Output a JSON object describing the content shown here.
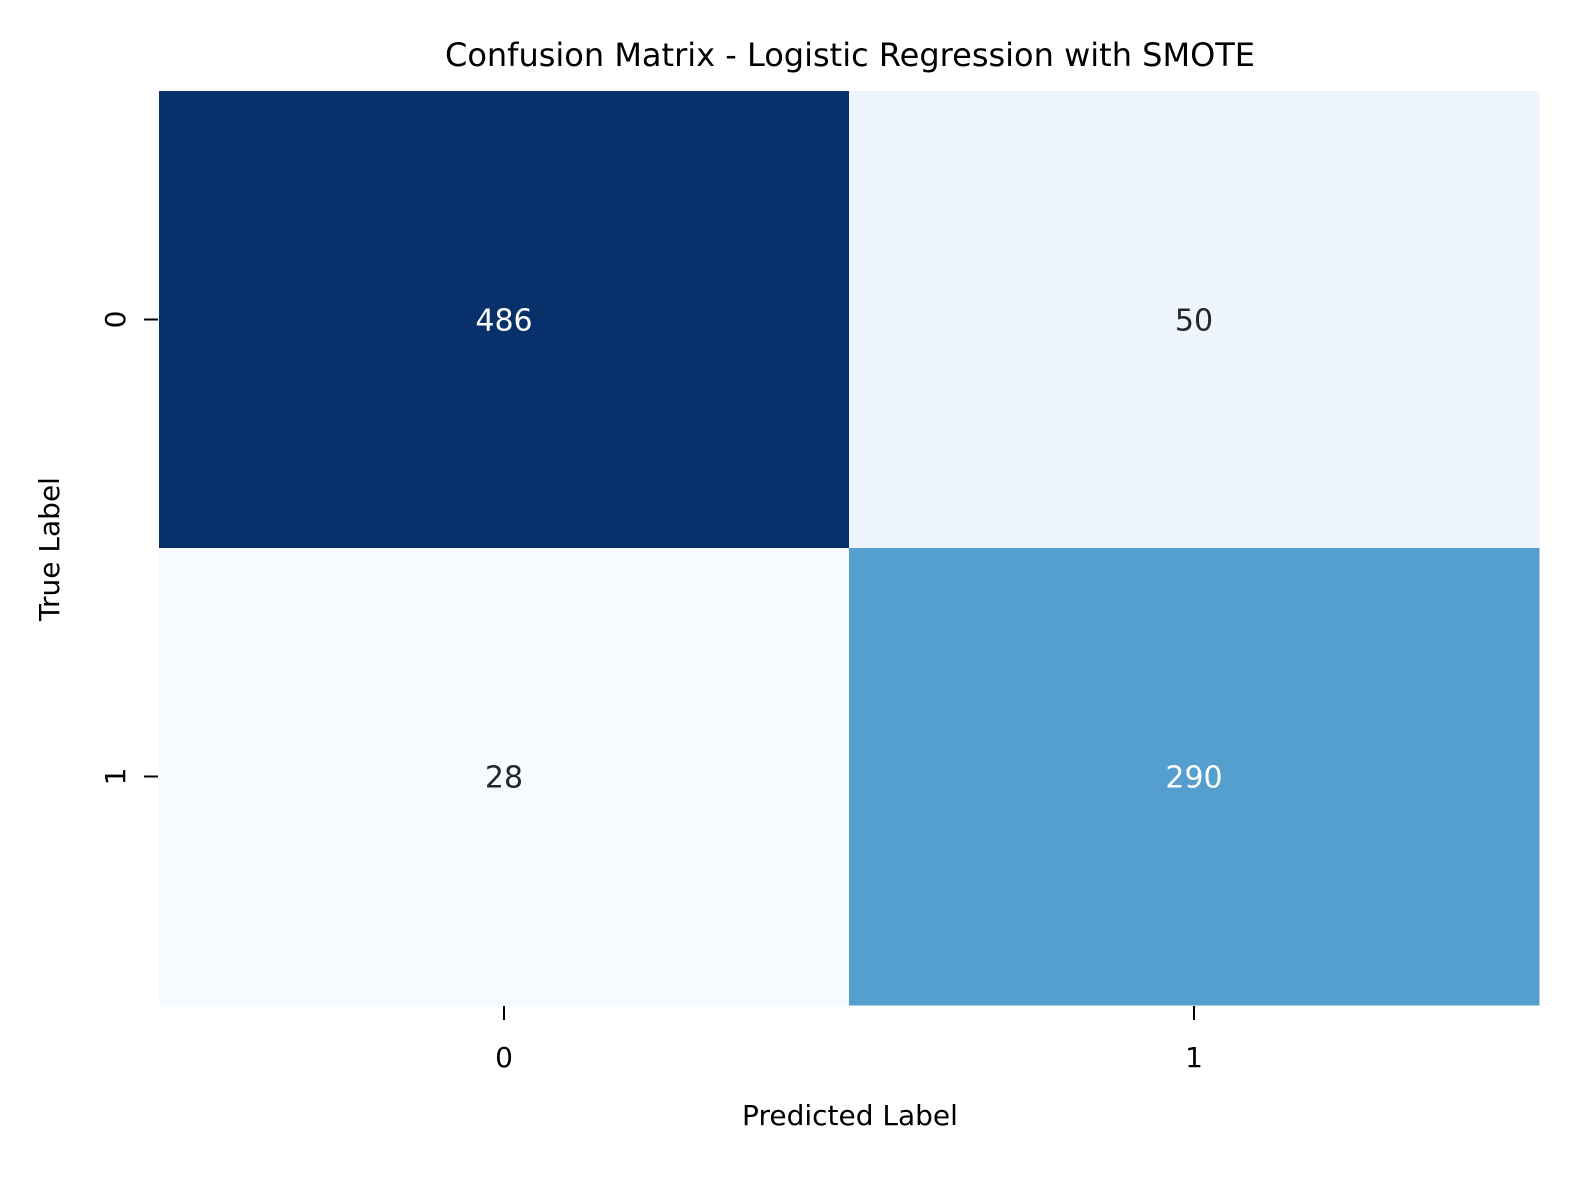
{
  "chart_data": {
    "type": "heatmap",
    "title": "Confusion Matrix - Logistic Regression with SMOTE",
    "xlabel": "Predicted Label",
    "ylabel": "True Label",
    "x_categories": [
      "0",
      "1"
    ],
    "y_categories": [
      "0",
      "1"
    ],
    "values": [
      [
        486,
        50
      ],
      [
        28,
        290
      ]
    ],
    "colormap": "Blues",
    "colorbar": false,
    "annotations": true,
    "value_range": [
      28,
      486
    ],
    "colors": {
      "cell_0_0": "#08306b",
      "cell_0_1": "#edf4fc",
      "cell_1_0": "#f7fbff",
      "cell_1_1": "#559fcf",
      "text_dark": "#262626",
      "text_light": "#ffffff",
      "axis_text": "#000000"
    }
  }
}
